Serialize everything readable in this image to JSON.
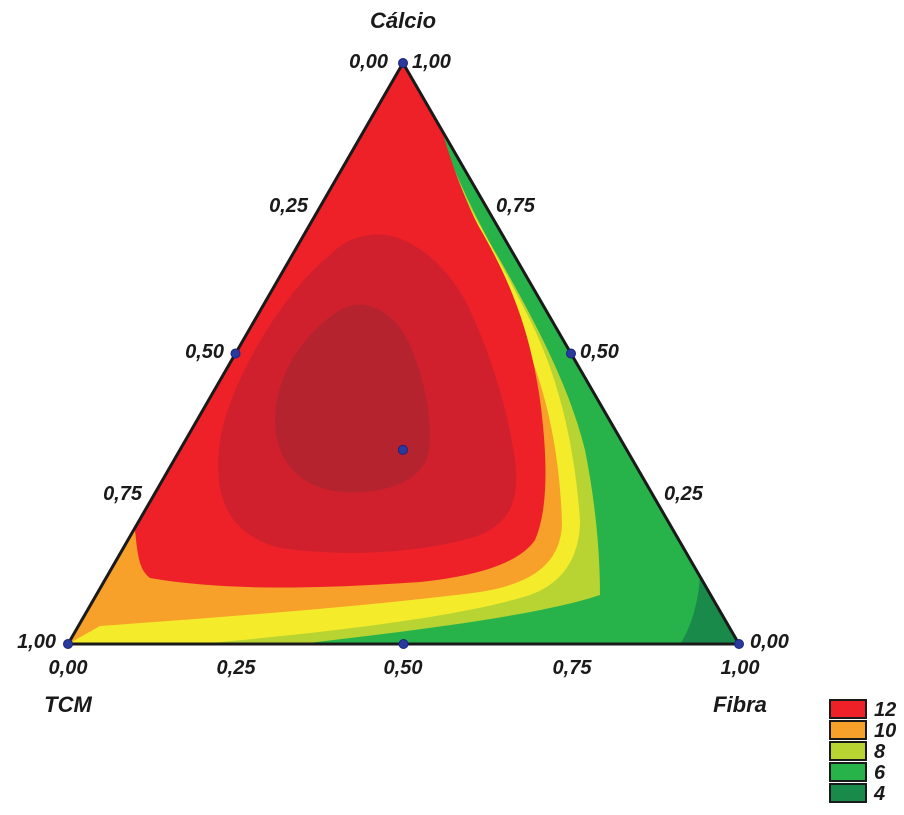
{
  "chart_data": {
    "type": "ternary-contour",
    "vertex_labels": {
      "top": "Cálcio",
      "left": "TCM",
      "right": "Fibra"
    },
    "corner_labels": {
      "top": [
        "0,00",
        "1,00"
      ],
      "left": "1,00",
      "right": "0,00"
    },
    "ticks": {
      "bottom": [
        "0,00",
        "0,25",
        "0,50",
        "0,75",
        "1,00"
      ],
      "left_edge": [
        "0,25",
        "0,50",
        "0,75"
      ],
      "right_edge": [
        "0,75",
        "0,50",
        "0,25"
      ]
    },
    "design_points": [
      {
        "calcio": 1.0,
        "tcm": 0.0,
        "fibra": 0.0
      },
      {
        "calcio": 0.0,
        "tcm": 1.0,
        "fibra": 0.0
      },
      {
        "calcio": 0.0,
        "tcm": 0.0,
        "fibra": 1.0
      },
      {
        "calcio": 0.5,
        "tcm": 0.5,
        "fibra": 0.0
      },
      {
        "calcio": 0.5,
        "tcm": 0.0,
        "fibra": 0.5
      },
      {
        "calcio": 0.0,
        "tcm": 0.5,
        "fibra": 0.5
      },
      {
        "calcio": 0.333,
        "tcm": 0.333,
        "fibra": 0.333
      }
    ],
    "legend": [
      {
        "label": "12",
        "color": "#ee2028"
      },
      {
        "label": "10",
        "color": "#f7a02a"
      },
      {
        "label": "8",
        "color": "#b8d433"
      },
      {
        "label": "6",
        "color": "#27b34a"
      },
      {
        "label": "4",
        "color": "#198a4a"
      }
    ],
    "contour_colors": {
      "darkest_red": "#b5232e",
      "dark_red": "#d0202d",
      "red": "#ee2028",
      "orange": "#f7a02a",
      "yellow": "#f4ec2a",
      "yellow_green": "#b8d433",
      "green": "#27b34a",
      "dark_green": "#198a4a"
    }
  }
}
